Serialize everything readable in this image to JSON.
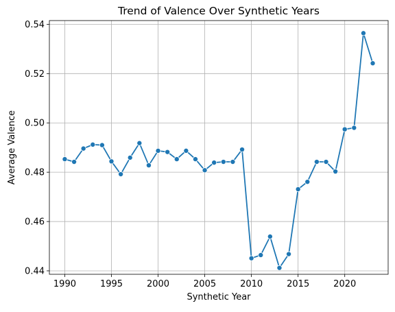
{
  "chart_data": {
    "type": "line",
    "title": "Trend of Valence Over Synthetic Years",
    "xlabel": "Synthetic Year",
    "ylabel": "Average Valence",
    "xlim": [
      1988.35,
      2024.65
    ],
    "ylim": [
      0.4386,
      0.5415
    ],
    "xticks": [
      1990,
      1995,
      2000,
      2005,
      2010,
      2015,
      2020
    ],
    "yticks": [
      0.44,
      0.46,
      0.48,
      0.5,
      0.52,
      0.54
    ],
    "ytick_labels": [
      "0.44",
      "0.46",
      "0.48",
      "0.50",
      "0.52",
      "0.54"
    ],
    "grid": true,
    "marker": "circle",
    "color": "#1f77b4",
    "series": [
      {
        "x": [
          1990,
          1991,
          1992,
          1993,
          1994,
          1995,
          1996,
          1997,
          1998,
          1999,
          2000,
          2001,
          2002,
          2003,
          2004,
          2005,
          2006,
          2007,
          2008,
          2009,
          2010,
          2011,
          2012,
          2013,
          2014,
          2015,
          2016,
          2017,
          2018,
          2019,
          2020,
          2021,
          2022,
          2023
        ],
        "values": [
          0.4853,
          0.4842,
          0.4896,
          0.4912,
          0.491,
          0.4844,
          0.4792,
          0.4859,
          0.4918,
          0.4828,
          0.4887,
          0.4882,
          0.4853,
          0.4887,
          0.4853,
          0.4808,
          0.4839,
          0.4842,
          0.4842,
          0.4892,
          0.4451,
          0.4464,
          0.4539,
          0.4412,
          0.4468,
          0.4731,
          0.4761,
          0.4842,
          0.4842,
          0.4803,
          0.4974,
          0.498,
          0.5364,
          0.5242
        ]
      }
    ]
  }
}
